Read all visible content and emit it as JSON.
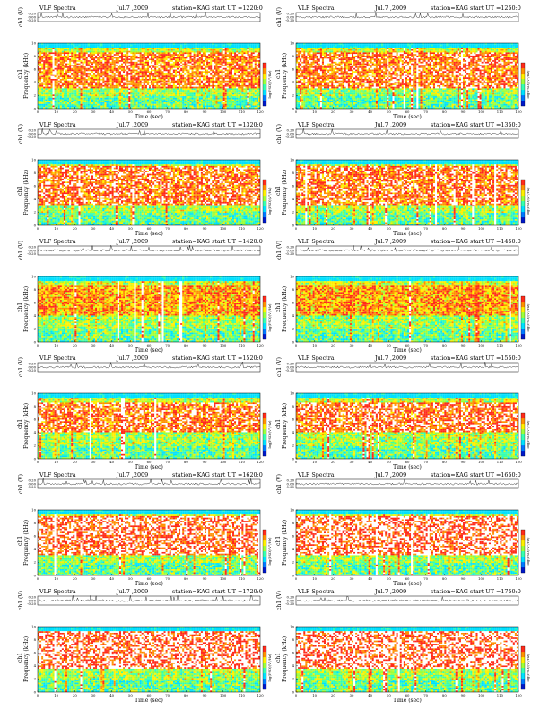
{
  "page": {
    "layout": "3 columns? no: 6 rows x 2 columns of spectrogram panels"
  },
  "common": {
    "title": "VLF Spectra",
    "date": "Jul.7 ,2009",
    "station": "station=KAG",
    "start_prefix": "start  UT  =",
    "time_label": "Time  (sec)",
    "ch_label": "ch1 (V)",
    "spec_label_top": "ch1",
    "freq_label": "Frequency  (kHz)",
    "cbar_label": "log(PSD)(V²/Hz)",
    "x_ticks": [
      "0",
      "10",
      "20",
      "30",
      "40",
      "50",
      "60",
      "70",
      "80",
      "90",
      "100",
      "110",
      "120"
    ],
    "y_ticks": [
      "0",
      "2",
      "4",
      "6",
      "8",
      "10"
    ],
    "ch_ticks": [
      "0.20",
      "0.00",
      "-0.20"
    ],
    "palette": [
      "#0018c8",
      "#0078ff",
      "#00e0ff",
      "#36ffb0",
      "#9cff3a",
      "#fff000",
      "#ff9000",
      "#ff2a1a",
      "#ffffff"
    ]
  },
  "chart_data": [
    {
      "type": "heatmap",
      "start_ut": "1220:0",
      "xlim": [
        0,
        120
      ],
      "ylim": [
        0,
        10
      ],
      "ch_ylim": [
        -0.3,
        0.3
      ],
      "band_khz": [
        3.0,
        8.5
      ],
      "band_intensity": 0.78
    },
    {
      "type": "heatmap",
      "start_ut": "1250:0",
      "xlim": [
        0,
        120
      ],
      "ylim": [
        0,
        10
      ],
      "ch_ylim": [
        -0.3,
        0.3
      ],
      "band_khz": [
        3.0,
        8.5
      ],
      "band_intensity": 0.8
    },
    {
      "type": "heatmap",
      "start_ut": "1320:0",
      "xlim": [
        0,
        120
      ],
      "ylim": [
        0,
        10
      ],
      "ch_ylim": [
        -0.3,
        0.3
      ],
      "band_khz": [
        3.0,
        9.0
      ],
      "band_intensity": 0.8
    },
    {
      "type": "heatmap",
      "start_ut": "1350:0",
      "xlim": [
        0,
        120
      ],
      "ylim": [
        0,
        10
      ],
      "ch_ylim": [
        -0.3,
        0.3
      ],
      "band_khz": [
        3.0,
        9.0
      ],
      "band_intensity": 0.8
    },
    {
      "type": "heatmap",
      "start_ut": "1420:0",
      "xlim": [
        0,
        120
      ],
      "ylim": [
        0,
        10
      ],
      "ch_ylim": [
        -0.3,
        0.3
      ],
      "band_khz": [
        4.0,
        8.5
      ],
      "band_intensity": 0.7
    },
    {
      "type": "heatmap",
      "start_ut": "1450:0",
      "xlim": [
        0,
        120
      ],
      "ylim": [
        0,
        10
      ],
      "ch_ylim": [
        -0.3,
        0.3
      ],
      "band_khz": [
        4.0,
        8.5
      ],
      "band_intensity": 0.7
    },
    {
      "type": "heatmap",
      "start_ut": "1520:0",
      "xlim": [
        0,
        120
      ],
      "ylim": [
        0,
        10
      ],
      "ch_ylim": [
        -0.3,
        0.3
      ],
      "band_khz": [
        4.0,
        8.5
      ],
      "band_intensity": 0.8
    },
    {
      "type": "heatmap",
      "start_ut": "1550:0",
      "xlim": [
        0,
        120
      ],
      "ylim": [
        0,
        10
      ],
      "ch_ylim": [
        -0.3,
        0.3
      ],
      "band_khz": [
        4.0,
        8.5
      ],
      "band_intensity": 0.82
    },
    {
      "type": "heatmap",
      "start_ut": "1620:0",
      "xlim": [
        0,
        120
      ],
      "ylim": [
        0,
        10
      ],
      "ch_ylim": [
        -0.3,
        0.3
      ],
      "band_khz": [
        3.0,
        9.0
      ],
      "band_intensity": 0.86
    },
    {
      "type": "heatmap",
      "start_ut": "1650:0",
      "xlim": [
        0,
        120
      ],
      "ylim": [
        0,
        10
      ],
      "ch_ylim": [
        -0.3,
        0.3
      ],
      "band_khz": [
        3.0,
        9.0
      ],
      "band_intensity": 0.88
    },
    {
      "type": "heatmap",
      "start_ut": "1720:0",
      "xlim": [
        0,
        120
      ],
      "ylim": [
        0,
        10
      ],
      "ch_ylim": [
        -0.3,
        0.3
      ],
      "band_khz": [
        3.5,
        9.5
      ],
      "band_intensity": 0.88
    },
    {
      "type": "heatmap",
      "start_ut": "1750:0",
      "xlim": [
        0,
        120
      ],
      "ylim": [
        0,
        10
      ],
      "ch_ylim": [
        -0.3,
        0.3
      ],
      "band_khz": [
        3.5,
        9.5
      ],
      "band_intensity": 0.88
    }
  ]
}
